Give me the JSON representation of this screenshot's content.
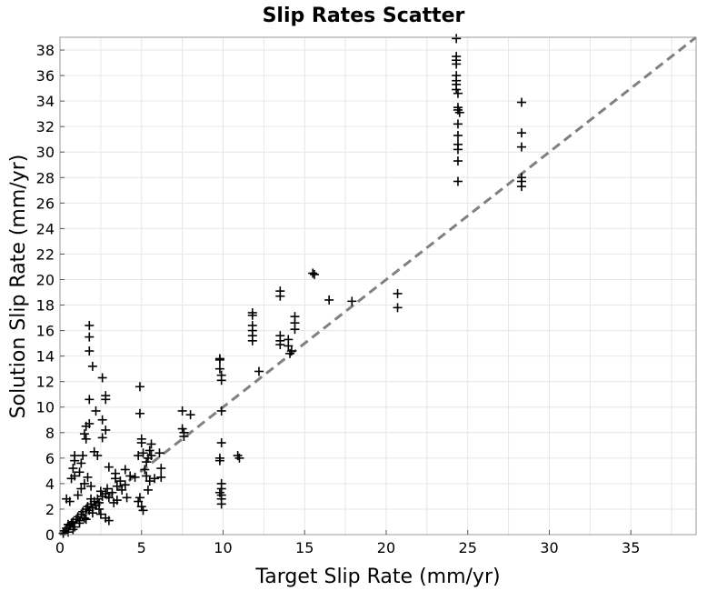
{
  "chart_data": {
    "type": "scatter",
    "title": "Slip Rates Scatter",
    "xlabel": "Target Slip Rate (mm/yr)",
    "ylabel": "Solution Slip Rate (mm/yr)",
    "xlim": [
      0,
      39
    ],
    "ylim": [
      0,
      39
    ],
    "x_ticks": [
      0,
      5,
      10,
      15,
      20,
      25,
      30,
      35
    ],
    "y_ticks": [
      0,
      2,
      4,
      6,
      8,
      10,
      12,
      14,
      16,
      18,
      20,
      22,
      24,
      26,
      28,
      30,
      32,
      34,
      36,
      38
    ],
    "grid": true,
    "marker": "+",
    "marker_color": "#000000",
    "reference_line": {
      "style": "dashed",
      "color": "#808080",
      "from": [
        0,
        0
      ],
      "to": [
        39,
        39
      ]
    },
    "series": [
      {
        "points": [
          [
            0.2,
            0.1
          ],
          [
            0.3,
            0.3
          ],
          [
            0.4,
            0.5
          ],
          [
            0.5,
            0.2
          ],
          [
            0.6,
            0.7
          ],
          [
            0.7,
            0.9
          ],
          [
            0.8,
            1.0
          ],
          [
            0.9,
            0.6
          ],
          [
            1.0,
            1.2
          ],
          [
            1.1,
            1.4
          ],
          [
            1.2,
            1.1
          ],
          [
            1.3,
            1.6
          ],
          [
            1.4,
            1.8
          ],
          [
            1.5,
            1.3
          ],
          [
            1.6,
            2.0
          ],
          [
            1.7,
            2.2
          ],
          [
            1.8,
            1.9
          ],
          [
            1.9,
            2.4
          ],
          [
            2.0,
            2.1
          ],
          [
            2.1,
            2.6
          ],
          [
            2.2,
            2.3
          ],
          [
            2.3,
            2.8
          ],
          [
            2.4,
            2.5
          ],
          [
            2.6,
            3.0
          ],
          [
            2.8,
            3.2
          ],
          [
            3.0,
            2.9
          ],
          [
            0.5,
            0.8
          ],
          [
            0.8,
            0.4
          ],
          [
            1.2,
            0.9
          ],
          [
            1.6,
            1.2
          ],
          [
            2.0,
            1.7
          ],
          [
            2.4,
            2.0
          ],
          [
            0.4,
            2.8
          ],
          [
            0.6,
            2.6
          ],
          [
            0.7,
            4.4
          ],
          [
            0.9,
            4.6
          ],
          [
            0.8,
            5.2
          ],
          [
            0.9,
            5.8
          ],
          [
            0.9,
            6.2
          ],
          [
            1.2,
            4.9
          ],
          [
            1.3,
            5.6
          ],
          [
            1.4,
            6.2
          ],
          [
            1.5,
            7.9
          ],
          [
            1.6,
            8.5
          ],
          [
            1.8,
            8.7
          ],
          [
            1.6,
            7.5
          ],
          [
            1.8,
            16.4
          ],
          [
            1.8,
            15.5
          ],
          [
            1.8,
            14.4
          ],
          [
            2.0,
            13.2
          ],
          [
            2.6,
            12.3
          ],
          [
            1.8,
            10.6
          ],
          [
            2.8,
            10.9
          ],
          [
            2.8,
            10.6
          ],
          [
            2.2,
            9.7
          ],
          [
            2.6,
            9.0
          ],
          [
            2.8,
            8.2
          ],
          [
            2.6,
            7.6
          ],
          [
            2.1,
            6.5
          ],
          [
            2.3,
            6.2
          ],
          [
            1.1,
            3.1
          ],
          [
            1.3,
            3.6
          ],
          [
            1.5,
            4.0
          ],
          [
            1.7,
            4.5
          ],
          [
            1.9,
            3.8
          ],
          [
            1.9,
            2.8
          ],
          [
            2.5,
            3.4
          ],
          [
            2.9,
            3.6
          ],
          [
            3.2,
            3.3
          ],
          [
            3.5,
            3.8
          ],
          [
            3.8,
            3.5
          ],
          [
            4.0,
            3.9
          ],
          [
            3.4,
            4.4
          ],
          [
            3.7,
            4.2
          ],
          [
            4.1,
            2.9
          ],
          [
            3.3,
            2.5
          ],
          [
            3.5,
            2.7
          ],
          [
            2.8,
            1.3
          ],
          [
            3.0,
            1.1
          ],
          [
            2.5,
            1.6
          ],
          [
            3.0,
            5.3
          ],
          [
            3.4,
            4.8
          ],
          [
            4.3,
            4.6
          ],
          [
            4.6,
            4.5
          ],
          [
            4.0,
            5.1
          ],
          [
            4.8,
            6.2
          ],
          [
            5.1,
            6.4
          ],
          [
            5.3,
            5.7
          ],
          [
            5.4,
            6.0
          ],
          [
            5.6,
            6.2
          ],
          [
            5.2,
            5.1
          ],
          [
            5.3,
            4.6
          ],
          [
            5.5,
            4.2
          ],
          [
            4.9,
            11.6
          ],
          [
            4.9,
            9.5
          ],
          [
            5.0,
            7.5
          ],
          [
            5.0,
            7.2
          ],
          [
            5.6,
            7.1
          ],
          [
            5.5,
            6.6
          ],
          [
            6.1,
            6.4
          ],
          [
            6.2,
            5.2
          ],
          [
            6.2,
            4.5
          ],
          [
            5.8,
            4.4
          ],
          [
            5.4,
            3.5
          ],
          [
            4.9,
            2.9
          ],
          [
            5.0,
            2.2
          ],
          [
            4.8,
            2.6
          ],
          [
            5.1,
            1.9
          ],
          [
            7.5,
            9.7
          ],
          [
            7.5,
            8.3
          ],
          [
            7.6,
            8.0
          ],
          [
            7.6,
            7.7
          ],
          [
            8.0,
            9.4
          ],
          [
            9.8,
            13.8
          ],
          [
            9.8,
            13.7
          ],
          [
            9.8,
            13.0
          ],
          [
            9.9,
            12.5
          ],
          [
            9.9,
            12.1
          ],
          [
            9.9,
            9.7
          ],
          [
            9.9,
            7.2
          ],
          [
            9.8,
            6.0
          ],
          [
            9.8,
            5.8
          ],
          [
            9.9,
            4.0
          ],
          [
            9.9,
            3.6
          ],
          [
            9.8,
            3.3
          ],
          [
            9.9,
            3.1
          ],
          [
            9.9,
            2.8
          ],
          [
            9.9,
            2.4
          ],
          [
            10.9,
            6.2
          ],
          [
            11.0,
            6.0
          ],
          [
            12.2,
            12.8
          ],
          [
            11.8,
            17.4
          ],
          [
            11.8,
            17.2
          ],
          [
            11.8,
            16.4
          ],
          [
            11.8,
            16.0
          ],
          [
            11.8,
            15.6
          ],
          [
            11.8,
            15.2
          ],
          [
            13.5,
            19.1
          ],
          [
            13.5,
            18.7
          ],
          [
            13.5,
            15.6
          ],
          [
            13.5,
            15.2
          ],
          [
            13.5,
            14.9
          ],
          [
            14.0,
            15.3
          ],
          [
            14.0,
            14.8
          ],
          [
            14.2,
            14.4
          ],
          [
            14.1,
            14.2
          ],
          [
            14.4,
            17.1
          ],
          [
            14.4,
            16.6
          ],
          [
            14.4,
            16.1
          ],
          [
            15.5,
            20.5
          ],
          [
            15.6,
            20.4
          ],
          [
            16.5,
            18.4
          ],
          [
            17.9,
            18.3
          ],
          [
            20.7,
            18.9
          ],
          [
            20.7,
            17.8
          ],
          [
            24.3,
            38.9
          ],
          [
            24.3,
            37.5
          ],
          [
            24.3,
            37.2
          ],
          [
            24.3,
            36.9
          ],
          [
            24.3,
            36.0
          ],
          [
            24.3,
            35.6
          ],
          [
            24.3,
            35.3
          ],
          [
            24.3,
            34.9
          ],
          [
            24.4,
            34.6
          ],
          [
            24.4,
            33.5
          ],
          [
            24.4,
            33.3
          ],
          [
            24.5,
            33.1
          ],
          [
            24.4,
            32.2
          ],
          [
            24.4,
            31.3
          ],
          [
            24.4,
            30.6
          ],
          [
            24.4,
            30.2
          ],
          [
            24.4,
            29.3
          ],
          [
            24.4,
            27.7
          ],
          [
            28.3,
            33.9
          ],
          [
            28.3,
            31.5
          ],
          [
            28.3,
            30.4
          ],
          [
            28.3,
            28.0
          ],
          [
            28.3,
            27.7
          ],
          [
            28.3,
            27.3
          ]
        ]
      }
    ]
  }
}
